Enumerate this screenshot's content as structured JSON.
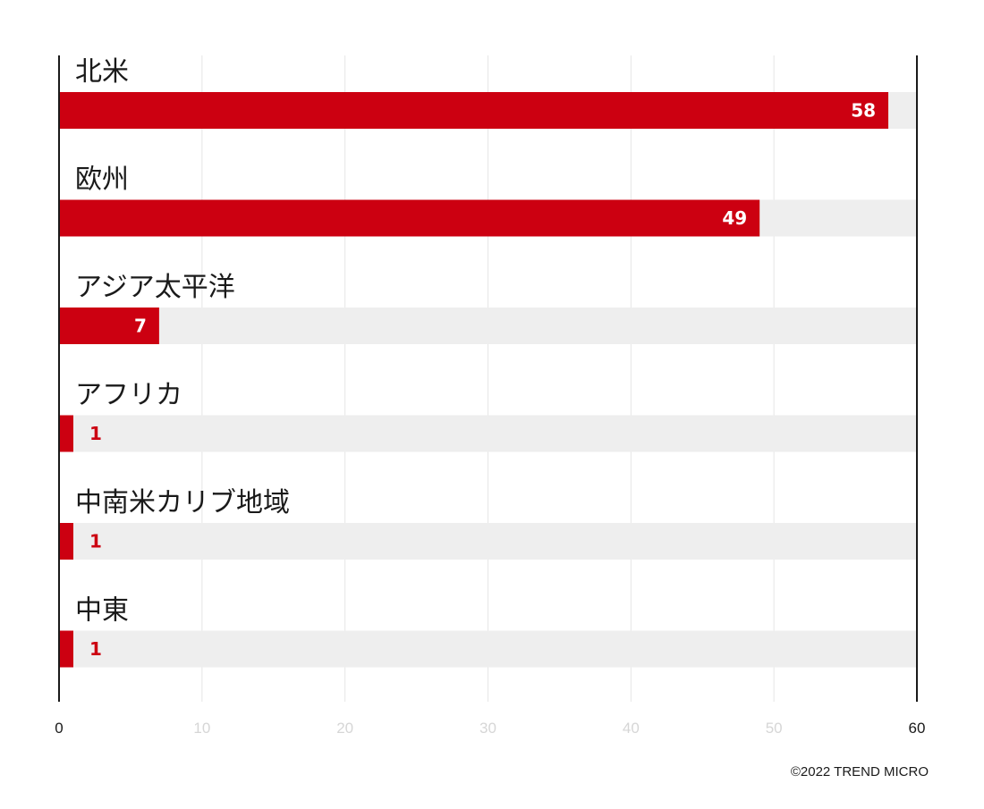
{
  "chart_data": {
    "type": "bar",
    "orientation": "horizontal",
    "categories": [
      "北米",
      "欧州",
      "アジア太平洋",
      "アフリカ",
      "中南米カリブ地域",
      "中東"
    ],
    "values": [
      58,
      49,
      7,
      1,
      1,
      1
    ],
    "xlim": [
      0,
      60
    ],
    "xticks": [
      0,
      10,
      20,
      30,
      40,
      50,
      60
    ],
    "grid": true,
    "legend": "none",
    "bar_color": "#cc0011",
    "track_color": "#eeeeee",
    "title": "",
    "xlabel": "",
    "ylabel": ""
  },
  "credit": "©2022 TREND MICRO"
}
